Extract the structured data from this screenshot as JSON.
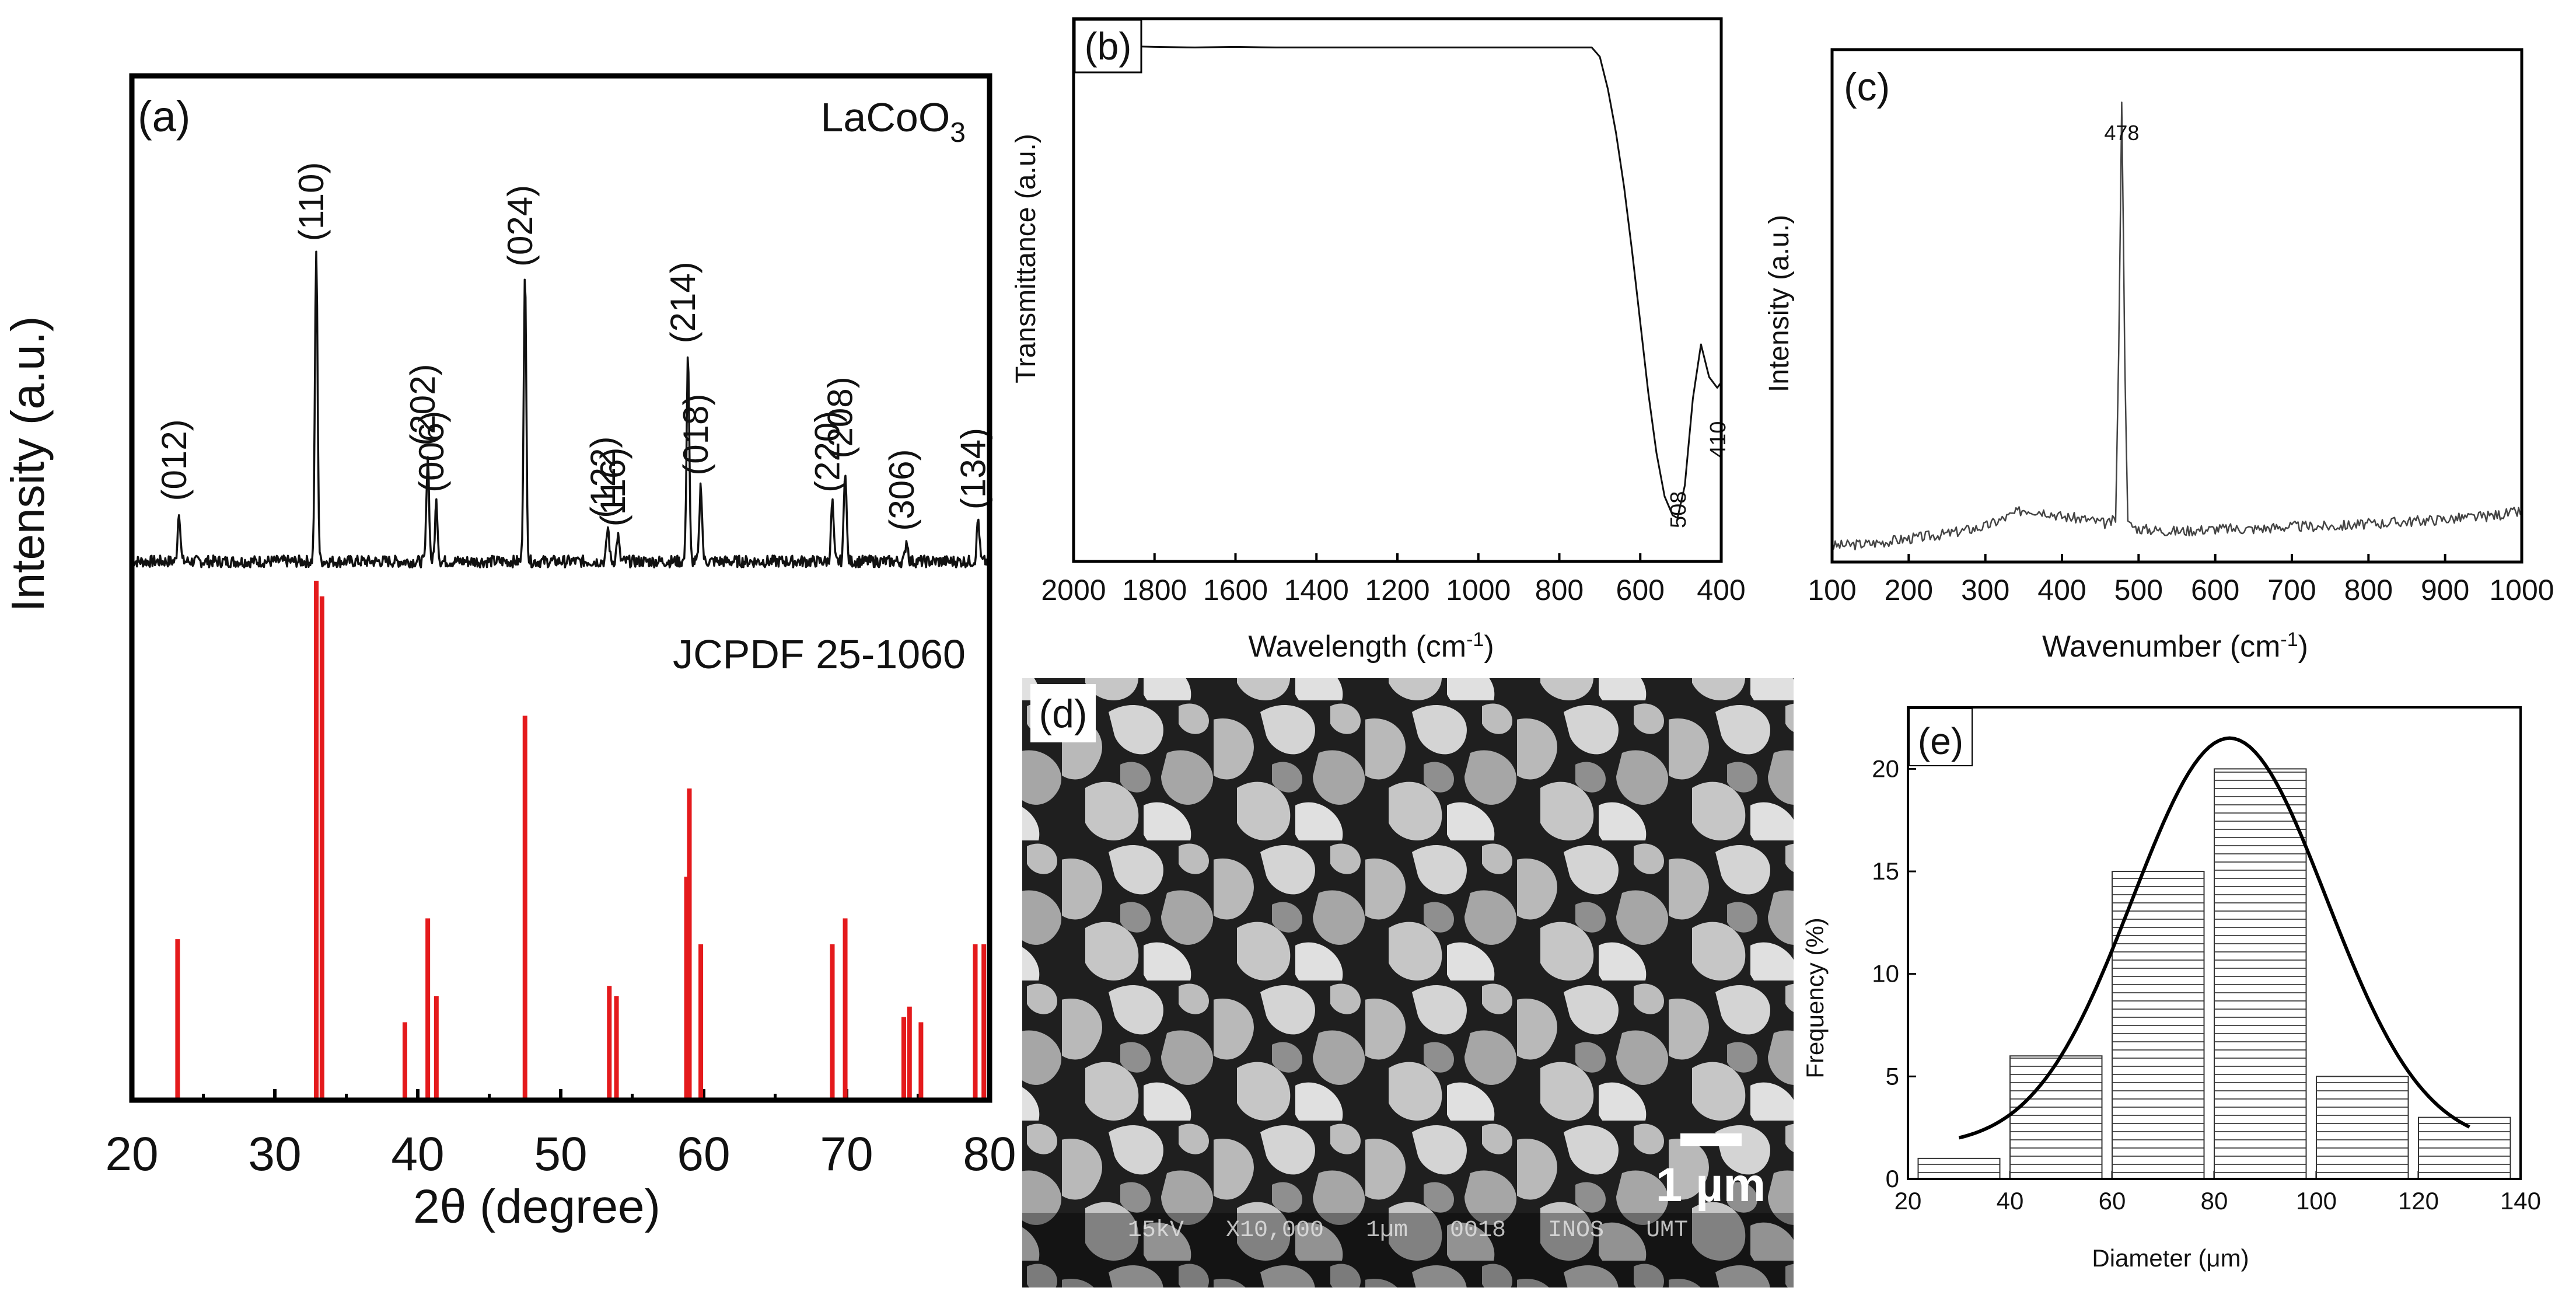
{
  "chart_data": [
    {
      "panel": "(a)",
      "type": "line",
      "label": "LaCoO3",
      "label_main": "LaCoO",
      "label_sub": "3",
      "reference_label": "JCPDF 25-1060",
      "xlabel": "2θ (degree)",
      "ylabel": "Intensity (a.u.)",
      "xlim": [
        20,
        80
      ],
      "xticks": [
        20,
        30,
        40,
        50,
        60,
        70,
        80
      ],
      "xtick_labels": [
        "20",
        "30",
        "40",
        "50",
        "60",
        "70",
        "80"
      ],
      "peaks": [
        {
          "x": 23.3,
          "h": 0.12,
          "hkl": "(012)"
        },
        {
          "x": 32.9,
          "h": 0.73,
          "hkl": "(110)"
        },
        {
          "x": 40.7,
          "h": 0.25,
          "hkl": "(202)"
        },
        {
          "x": 41.3,
          "h": 0.14,
          "hkl": "(006)"
        },
        {
          "x": 47.5,
          "h": 0.67,
          "hkl": "(024)"
        },
        {
          "x": 53.3,
          "h": 0.08,
          "hkl": "(122)"
        },
        {
          "x": 54.0,
          "h": 0.06,
          "hkl": "(116)"
        },
        {
          "x": 58.9,
          "h": 0.49,
          "hkl": "(214)"
        },
        {
          "x": 59.8,
          "h": 0.18,
          "hkl": "(018)"
        },
        {
          "x": 69.0,
          "h": 0.14,
          "hkl": "(220)"
        },
        {
          "x": 69.9,
          "h": 0.22,
          "hkl": "(208)"
        },
        {
          "x": 74.2,
          "h": 0.05,
          "hkl": "(306)"
        },
        {
          "x": 79.2,
          "h": 0.1,
          "hkl": "(134)"
        }
      ],
      "reference_lines": [
        {
          "x": 23.2,
          "h": 0.31
        },
        {
          "x": 32.9,
          "h": 1.0
        },
        {
          "x": 33.3,
          "h": 0.97
        },
        {
          "x": 39.1,
          "h": 0.15
        },
        {
          "x": 40.7,
          "h": 0.35
        },
        {
          "x": 41.3,
          "h": 0.2
        },
        {
          "x": 47.5,
          "h": 0.74
        },
        {
          "x": 53.4,
          "h": 0.22
        },
        {
          "x": 53.9,
          "h": 0.2
        },
        {
          "x": 58.8,
          "h": 0.43
        },
        {
          "x": 59.0,
          "h": 0.6
        },
        {
          "x": 59.8,
          "h": 0.3
        },
        {
          "x": 69.0,
          "h": 0.3
        },
        {
          "x": 69.9,
          "h": 0.35
        },
        {
          "x": 74.0,
          "h": 0.16
        },
        {
          "x": 74.4,
          "h": 0.18
        },
        {
          "x": 75.2,
          "h": 0.15
        },
        {
          "x": 79.0,
          "h": 0.3
        },
        {
          "x": 79.6,
          "h": 0.3
        }
      ],
      "colors": {
        "pattern": "#111111",
        "reference": "#e41a1c"
      }
    },
    {
      "panel": "(b)",
      "type": "line",
      "xlabel_main": "Wavelength (cm",
      "xlabel_sup": "-1",
      "xlabel_end": ")",
      "ylabel": "Transmittance (a.u.)",
      "xlim": [
        2000,
        400
      ],
      "xticks": [
        2000,
        1800,
        1600,
        1400,
        1200,
        1000,
        800,
        600,
        400
      ],
      "xtick_labels": [
        "2000",
        "1800",
        "1600",
        "1400",
        "1200",
        "1000",
        "800",
        "600",
        "400"
      ],
      "ylim": [
        0,
        1
      ],
      "x": [
        2000,
        1950,
        1900,
        1800,
        1700,
        1600,
        1500,
        1400,
        1300,
        1200,
        1100,
        1000,
        900,
        800,
        720,
        700,
        680,
        660,
        640,
        620,
        600,
        580,
        560,
        540,
        520,
        508,
        490,
        470,
        450,
        430,
        410,
        400
      ],
      "y": [
        0.955,
        0.945,
        0.95,
        0.948,
        0.947,
        0.948,
        0.947,
        0.947,
        0.947,
        0.947,
        0.947,
        0.947,
        0.947,
        0.947,
        0.947,
        0.93,
        0.87,
        0.79,
        0.69,
        0.57,
        0.44,
        0.31,
        0.2,
        0.12,
        0.085,
        0.08,
        0.14,
        0.3,
        0.4,
        0.34,
        0.32,
        0.33
      ],
      "annotations": [
        {
          "x": 508,
          "text": "508"
        },
        {
          "x": 410,
          "text": "410"
        }
      ]
    },
    {
      "panel": "(c)",
      "type": "line",
      "xlabel_main": "Wavenumber (cm",
      "xlabel_sup": "-1",
      "xlabel_end": ")",
      "ylabel": "Intensity (a.u.)",
      "xlim": [
        100,
        1000
      ],
      "xticks": [
        100,
        200,
        300,
        400,
        500,
        600,
        700,
        800,
        900,
        1000
      ],
      "xtick_labels": [
        "100",
        "200",
        "300",
        "400",
        "500",
        "600",
        "700",
        "800",
        "900",
        "1000"
      ],
      "ylim": [
        0,
        1
      ],
      "x": [
        100,
        150,
        200,
        250,
        300,
        330,
        350,
        380,
        400,
        430,
        460,
        470,
        474,
        478,
        482,
        486,
        500,
        550,
        600,
        650,
        700,
        750,
        800,
        850,
        900,
        950,
        1000
      ],
      "y": [
        0.015,
        0.02,
        0.03,
        0.04,
        0.055,
        0.075,
        0.09,
        0.085,
        0.075,
        0.07,
        0.06,
        0.07,
        0.4,
        0.93,
        0.4,
        0.06,
        0.05,
        0.045,
        0.05,
        0.05,
        0.055,
        0.055,
        0.06,
        0.065,
        0.07,
        0.075,
        0.085
      ],
      "annotations": [
        {
          "x": 478,
          "text": "478"
        }
      ]
    },
    {
      "panel": "(d)",
      "type": "image",
      "scale_bar_label": "1 µm",
      "info_bar": "15kV   X10,000   1µm   0018   INOS   UMT"
    },
    {
      "panel": "(e)",
      "type": "bar",
      "xlabel_pre": "Diameter (",
      "xlabel_mu": "μ",
      "xlabel_post": "m)",
      "ylabel": "Frequency (%)",
      "xlim": [
        20,
        140
      ],
      "ylim": [
        0,
        23
      ],
      "xticks": [
        20,
        40,
        60,
        80,
        100,
        120,
        140
      ],
      "xtick_labels": [
        "20",
        "40",
        "60",
        "80",
        "100",
        "120",
        "140"
      ],
      "yticks": [
        0,
        5,
        10,
        15,
        20
      ],
      "ytick_labels": [
        "0",
        "5",
        "10",
        "15",
        "20"
      ],
      "bins": [
        {
          "from": 22,
          "to": 38,
          "value": 1
        },
        {
          "from": 40,
          "to": 58,
          "value": 6
        },
        {
          "from": 60,
          "to": 78,
          "value": 15
        },
        {
          "from": 80,
          "to": 98,
          "value": 20
        },
        {
          "from": 100,
          "to": 118,
          "value": 5
        },
        {
          "from": 120,
          "to": 138,
          "value": 3
        }
      ],
      "fit": {
        "type": "gaussian",
        "mean": 83,
        "sigma": 19,
        "amplitude": 21.5,
        "x_range": [
          30,
          130
        ]
      }
    }
  ]
}
